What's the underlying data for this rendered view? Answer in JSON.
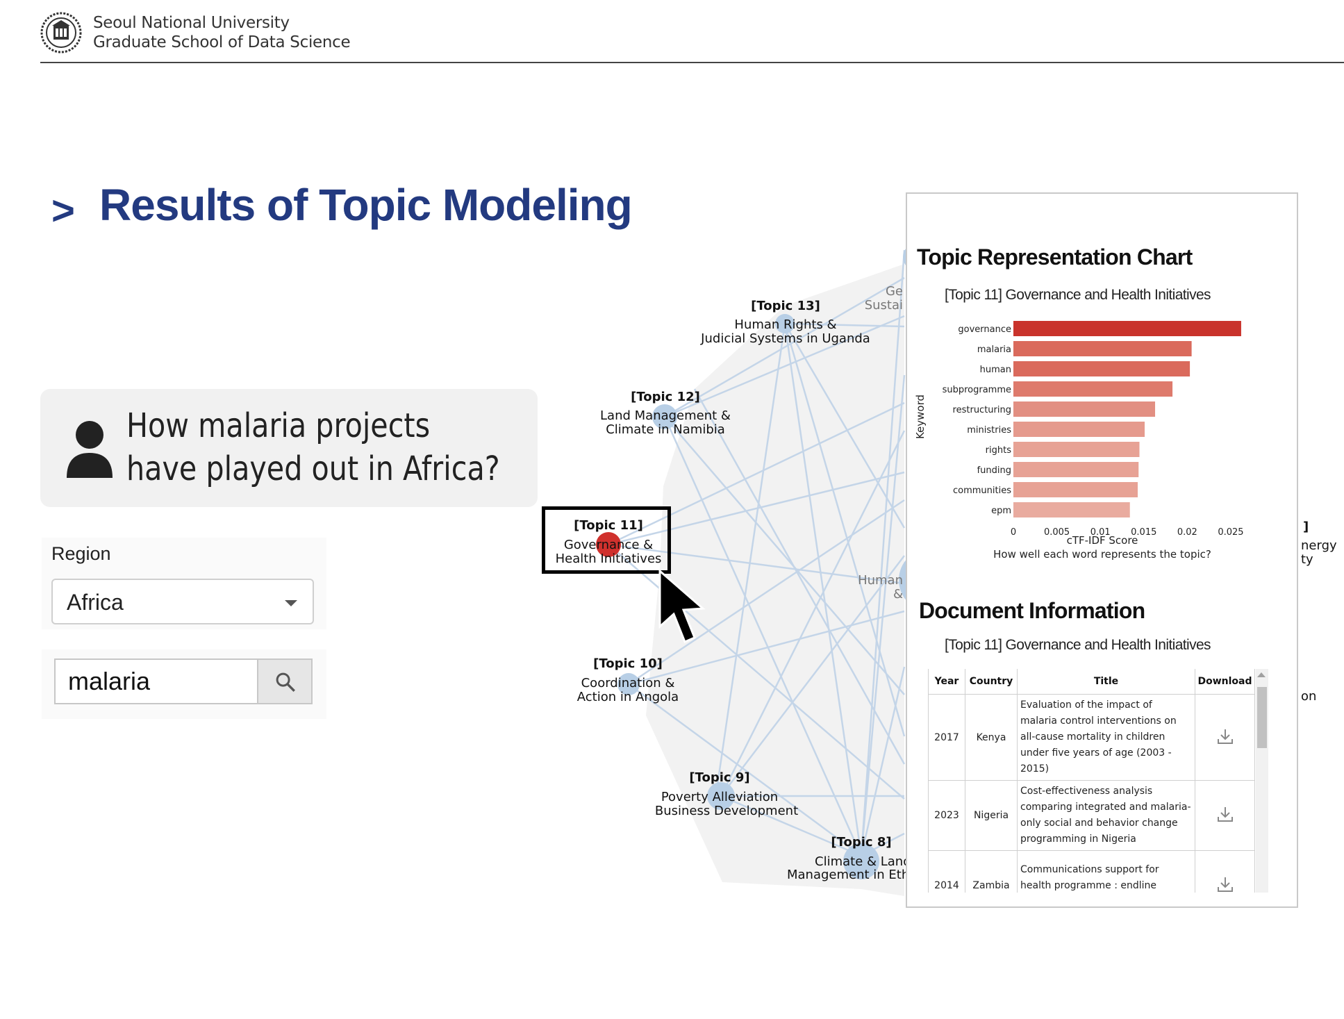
{
  "header": {
    "university": "Seoul National University",
    "school": "Graduate School of Data Science",
    "logo_icon": "snu-emblem-icon"
  },
  "title": {
    "marker": ">",
    "text": "Results of Topic Modeling",
    "color": "#233a80"
  },
  "query": {
    "icon": "user-icon",
    "line1": "How malaria projects",
    "line2": "have played out in Africa?"
  },
  "region": {
    "label": "Region",
    "selected": "Africa"
  },
  "search": {
    "value": "malaria",
    "icon": "search-icon"
  },
  "network": {
    "nodes": [
      {
        "id": "t13",
        "title": "[Topic 13]",
        "line1": "Human Rights &",
        "line2": "Judicial Systems in Uganda"
      },
      {
        "id": "t12",
        "title": "[Topic 12]",
        "line1": "Land Management &",
        "line2": "Climate in Namibia"
      },
      {
        "id": "t11",
        "title": "[Topic 11]",
        "line1": "Governance &",
        "line2": "Health Initiatives",
        "highlighted": true,
        "color": "#d0312d"
      },
      {
        "id": "t10",
        "title": "[Topic 10]",
        "line1": "Coordination &",
        "line2": "Action in Angola"
      },
      {
        "id": "t9",
        "title": "[Topic 9]",
        "line1": "Poverty Alleviation",
        "line2": "Business Development"
      },
      {
        "id": "t8",
        "title": "[Topic 8]",
        "line1": "Climate & Land",
        "line2": "Management in Eth"
      }
    ],
    "partial_labels": {
      "top_a": "Ge",
      "top_b": "Sustai",
      "mid_a": "Human",
      "mid_b": "&",
      "right_a": "]",
      "right_b": "nergy",
      "right_c": "ty",
      "right_d": "on"
    },
    "node_color": "#b8cfe6",
    "edge_color": "#c4d5e8"
  },
  "topic_chart": {
    "heading": "Topic Representation Chart",
    "subtitle": "[Topic 11] Governance and Health Initiatives",
    "chart_data": {
      "type": "bar",
      "orientation": "horizontal",
      "categories": [
        "governance",
        "malaria",
        "human",
        "subprogramme",
        "restructuring",
        "ministries",
        "rights",
        "funding",
        "communities",
        "epm"
      ],
      "values": [
        0.0262,
        0.0205,
        0.0203,
        0.0183,
        0.0163,
        0.0151,
        0.0145,
        0.0144,
        0.0143,
        0.0134
      ],
      "xlabel": "cTF-IDF Score",
      "xlabel_caption": "How well each word represents the topic?",
      "ylabel": "Keyword",
      "xticks": [
        "0",
        "0.005",
        "0.01",
        "0.015",
        "0.02",
        "0.025"
      ],
      "xlim": [
        0,
        0.029
      ],
      "colors": [
        "#c9332c",
        "#da6a5c",
        "#da6a5c",
        "#de7a6c",
        "#e28f82",
        "#e59a8d",
        "#e7a295",
        "#e7a295",
        "#e7a295",
        "#e9ab9f"
      ]
    }
  },
  "documents": {
    "heading": "Document Information",
    "subtitle": "[Topic 11] Governance and Health Initiatives",
    "columns": [
      "Year",
      "Country",
      "Title",
      "Download"
    ],
    "rows": [
      {
        "year": "2017",
        "country": "Kenya",
        "title": "Evaluation of the impact of malaria control interventions on all-cause mortality in children under five years of age (2003 - 2015)",
        "download_icon": "download-icon"
      },
      {
        "year": "2023",
        "country": "Nigeria",
        "title": "Cost-effectiveness analysis comparing integrated and malaria-only social and behavior change programming in Nigeria",
        "download_icon": "download-icon"
      },
      {
        "year": "2014",
        "country": "Zambia",
        "title": "Communications support for health programme : endline evaluation report",
        "download_icon": "download-icon"
      }
    ]
  }
}
